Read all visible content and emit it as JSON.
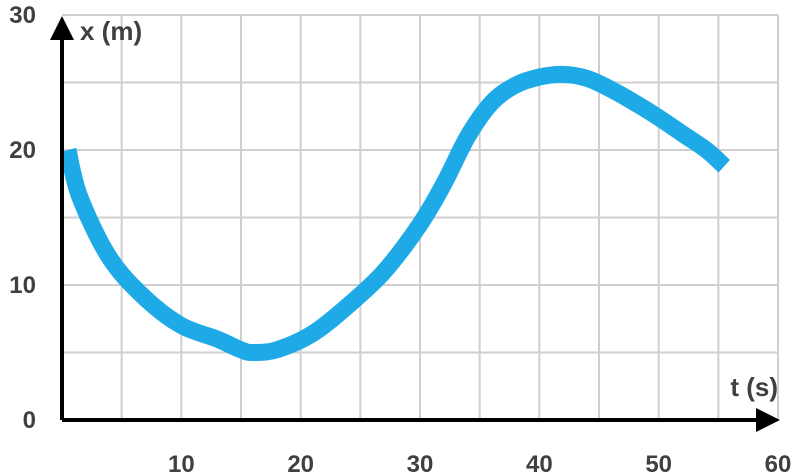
{
  "chart_data": {
    "type": "line",
    "title": "",
    "xlabel": "t (s)",
    "ylabel": "x (m)",
    "xlim": [
      0,
      60
    ],
    "ylim": [
      0,
      30
    ],
    "x_ticks": [
      10,
      20,
      30,
      40,
      50,
      60
    ],
    "y_ticks": [
      0,
      10,
      20,
      30
    ],
    "grid": true,
    "series": [
      {
        "color": "#1eaae6",
        "x": [
          0.5,
          1.5,
          4,
          7,
          10,
          13,
          15,
          16,
          18,
          21,
          24,
          27,
          30,
          32,
          34,
          36,
          38,
          40,
          42,
          44,
          46,
          48,
          50,
          52,
          54,
          55.5
        ],
        "y": [
          20.0,
          16.5,
          12.0,
          9.0,
          7.0,
          6.0,
          5.2,
          5.0,
          5.2,
          6.4,
          8.5,
          11.0,
          14.5,
          17.5,
          21.0,
          23.5,
          24.8,
          25.4,
          25.6,
          25.3,
          24.5,
          23.5,
          22.4,
          21.2,
          20.0,
          18.8
        ]
      }
    ]
  }
}
